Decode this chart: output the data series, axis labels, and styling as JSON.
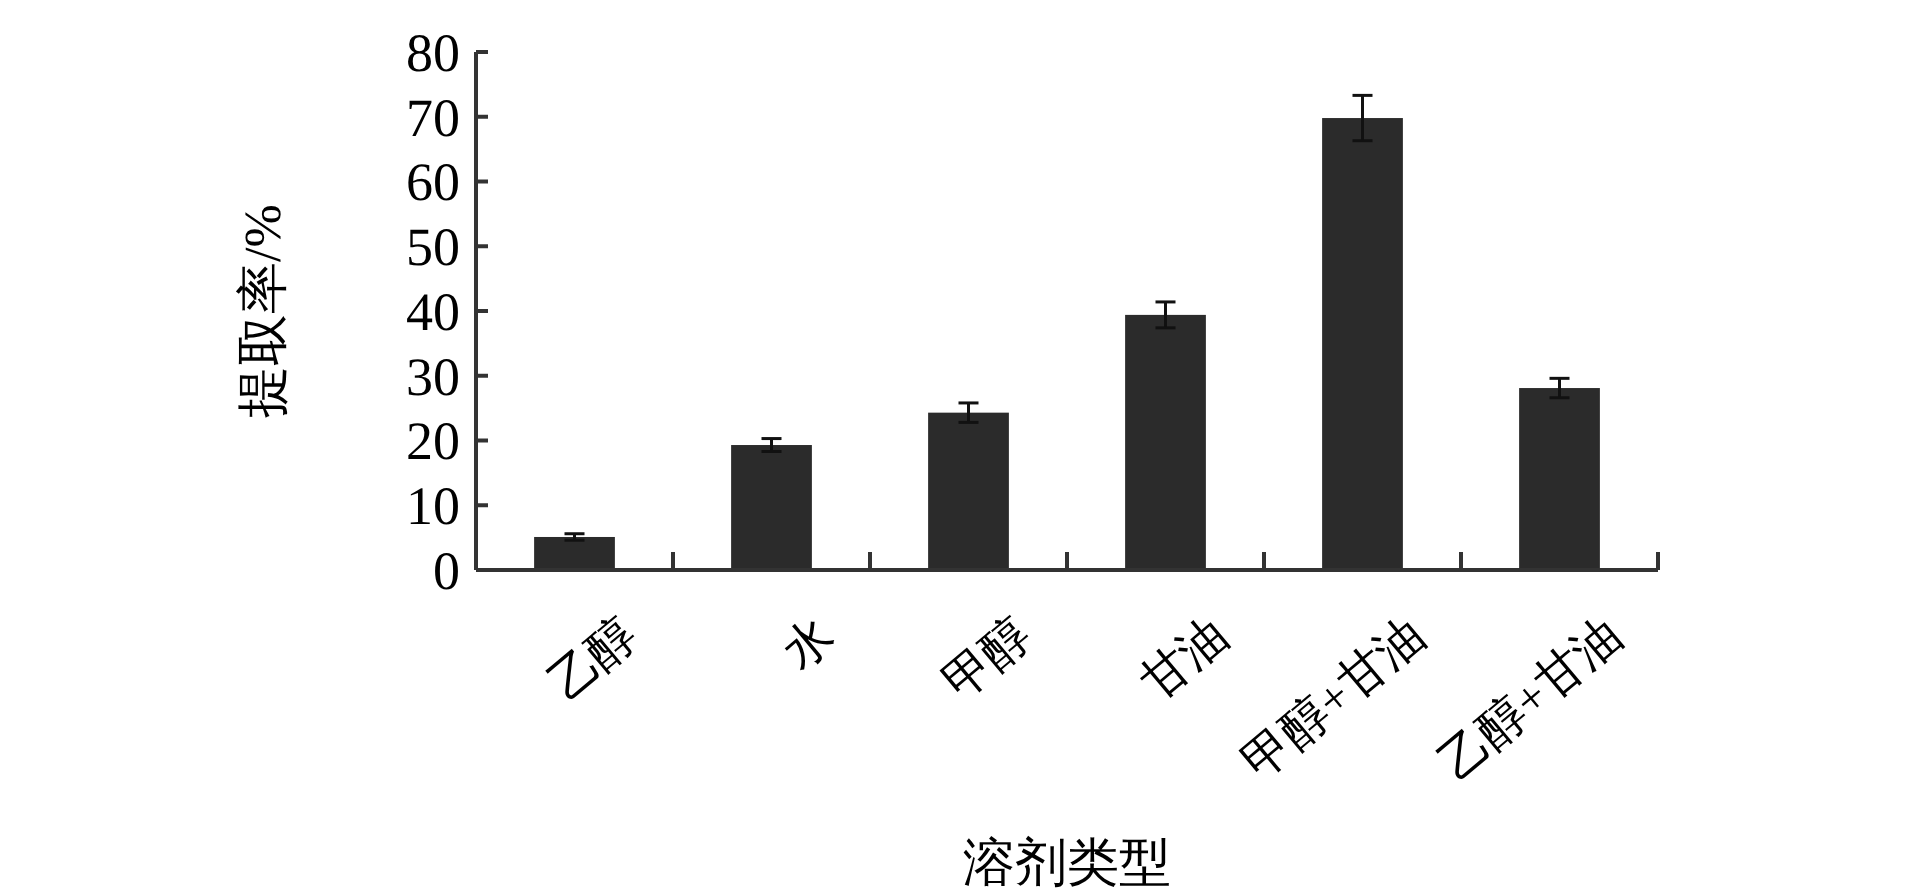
{
  "chart_data": {
    "type": "bar",
    "xlabel": "溶剂类型",
    "ylabel": "提取率/%",
    "categories": [
      "乙醇",
      "水",
      "甲醇",
      "甘油",
      "甲醇+甘油",
      "乙醇+甘油"
    ],
    "values": [
      5.1,
      19.3,
      24.3,
      39.4,
      69.8,
      28.1
    ],
    "errors": [
      0.5,
      1,
      1.5,
      2,
      3.5,
      1.5
    ],
    "color": "#2b2b2b",
    "ylim": [
      0,
      80
    ],
    "yticks": [
      0,
      10,
      20,
      30,
      40,
      50,
      60,
      70,
      80
    ],
    "grid": false
  }
}
